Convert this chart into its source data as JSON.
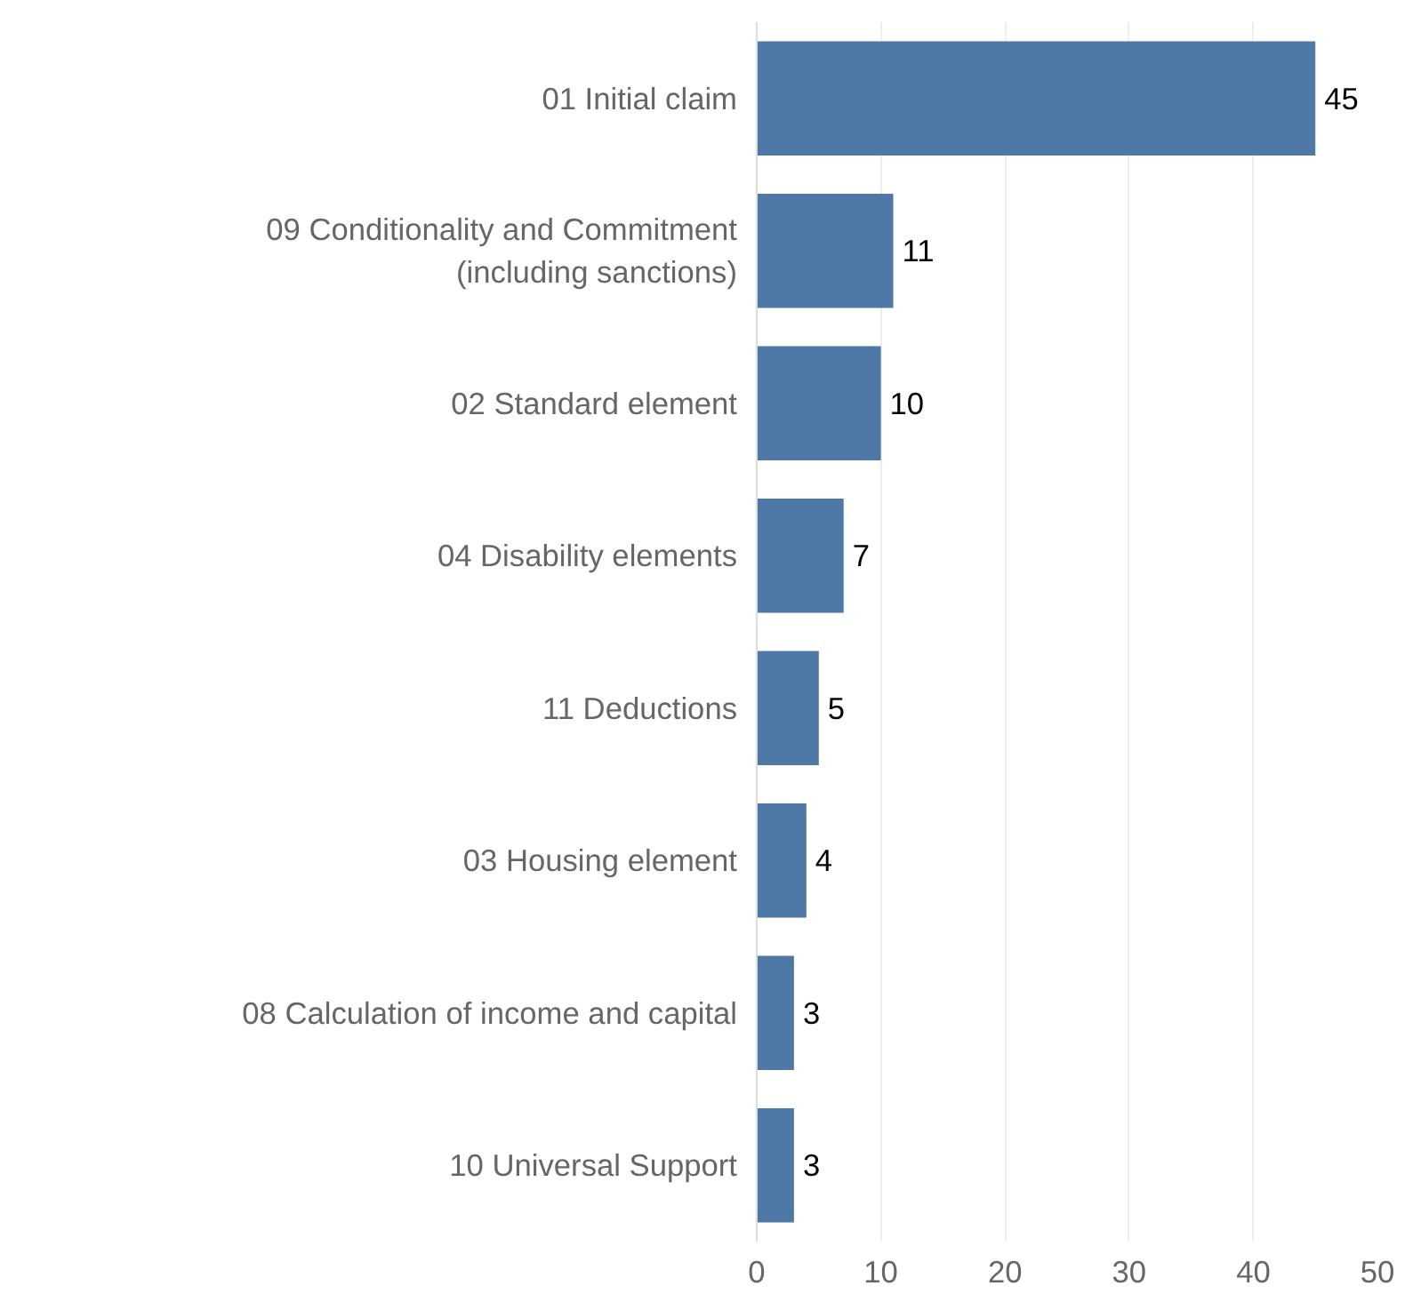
{
  "chart_data": {
    "type": "bar",
    "orientation": "horizontal",
    "categories": [
      "01 Initial claim",
      "09 Conditionality and Commitment (including sanctions)",
      "02 Standard element",
      "04 Disability elements",
      "11 Deductions",
      "03 Housing element",
      "08 Calculation of income and capital",
      "10 Universal Support"
    ],
    "values": [
      45,
      11,
      10,
      7,
      5,
      4,
      3,
      3
    ],
    "color": "#4e79a7",
    "xlim": [
      0,
      50
    ],
    "xticks": [
      0,
      10,
      20,
      30,
      40,
      50
    ],
    "grid": "x",
    "data_labels": true
  }
}
